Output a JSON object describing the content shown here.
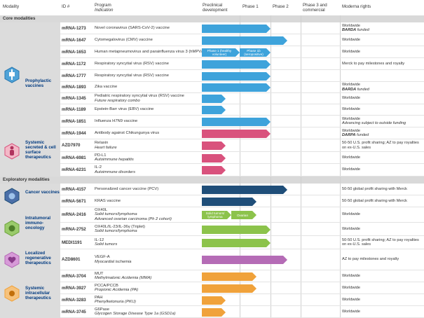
{
  "header": {
    "modality": "Modality",
    "id": "ID #",
    "program": "Program",
    "indication": "Indication",
    "preclinical": "Preclinical development",
    "phase1": "Phase 1",
    "phase2": "Phase 2",
    "phase3": "Phase 3 and commercial",
    "rights": "Moderna rights"
  },
  "sections": {
    "core": "Core modalities",
    "exploratory": "Exploratory modalities"
  },
  "groups": {
    "prophylactic": "Prophylactic vaccines",
    "systemic_secreted": "Systemic secreted & cell surface therapeutics",
    "cancer": "Cancer vaccines",
    "intratumoral": "Intratumoral immuno-oncology",
    "localized": "Localized regenerative therapeutics",
    "systemic_intracellular": "Systemic intracellular therapeutics"
  },
  "colors": {
    "blue": "#3ea3db",
    "pink": "#d9527d",
    "navy": "#1f4e79",
    "green": "#8cc34b",
    "purple": "#b56cb6",
    "orange": "#f0a23b"
  },
  "rows": [
    {
      "id": "mRNA-1273",
      "prog": "Novel coronavirus (SARS-CoV-2) vaccine",
      "ind": "",
      "rights": "Worldwide",
      "rights_em": "BARDA",
      "rights_sub": " funded"
    },
    {
      "id": "mRNA-1647",
      "prog": "Cytomegalovirus (CMV) vaccine",
      "ind": "",
      "rights": "Worldwide",
      "rights_em": "",
      "rights_sub": ""
    },
    {
      "id": "mRNA-1653",
      "prog": "Human metapneumovirus and parainfluenza virus 3 (hMPV/PIV3) vaccine",
      "ind": "",
      "rights": "Worldwide",
      "rights_em": "",
      "rights_sub": ""
    },
    {
      "id": "mRNA-1172",
      "prog": "Respiratory syncytial virus (RSV) vaccine",
      "ind": "",
      "rights": "Merck to pay milestones and royalty",
      "rights_em": "",
      "rights_sub": ""
    },
    {
      "id": "mRNA-1777",
      "prog": "Respiratory syncytial virus (RSV) vaccine",
      "ind": "",
      "rights": "",
      "rights_em": "",
      "rights_sub": ""
    },
    {
      "id": "mRNA-1893",
      "prog": "Zika vaccine",
      "ind": "",
      "rights": "Worldwide",
      "rights_em": "BARDA",
      "rights_sub": " funded"
    },
    {
      "id": "mRNA-1345",
      "prog": "Pediatric respiratory syncytial virus (RSV) vaccine",
      "ind": "Future respiratory combo",
      "rights": "Worldwide",
      "rights_em": "",
      "rights_sub": ""
    },
    {
      "id": "mRNA-1189",
      "prog": "Epstein-Barr virus (EBV) vaccine",
      "ind": "",
      "rights": "Worldwide",
      "rights_em": "",
      "rights_sub": ""
    },
    {
      "id": "mRNA-1851",
      "prog": "Influenza H7N9 vaccine",
      "ind": "",
      "rights": "Worldwide",
      "rights_em": "",
      "rights_sub": "Advancing subject to outside funding"
    },
    {
      "id": "mRNA-1944",
      "prog": "Antibody against Chikungunya virus",
      "ind": "",
      "rights": "Worldwide",
      "rights_em": "DARPA",
      "rights_sub": " funded"
    },
    {
      "id": "AZD7970",
      "prog": "Relaxin",
      "ind": "Heart failure",
      "rights": "50-50 U.S. profit sharing; AZ to pay royalties on ex-U.S. sales",
      "rights_em": "",
      "rights_sub": ""
    },
    {
      "id": "mRNA-6981",
      "prog": "PD-L1",
      "ind": "Autoimmune hepatitis",
      "rights": "Worldwide",
      "rights_em": "",
      "rights_sub": ""
    },
    {
      "id": "mRNA-6231",
      "prog": "IL-2",
      "ind": "Autoimmune disorders",
      "rights": "Worldwide",
      "rights_em": "",
      "rights_sub": ""
    },
    {
      "id": "mRNA-4157",
      "prog": "Personalized cancer vaccine (PCV)",
      "ind": "",
      "rights": "50-50 global profit sharing with Merck",
      "rights_em": "",
      "rights_sub": ""
    },
    {
      "id": "mRNA-5671",
      "prog": "KRAS vaccine",
      "ind": "",
      "rights": "50-50 global profit sharing with Merck",
      "rights_em": "",
      "rights_sub": ""
    },
    {
      "id": "mRNA-2416",
      "prog": "OX40L",
      "ind": "Solid tumors/lymphoma",
      "ind2": "Advanced ovarian carcinoma (Ph 2 cohort)",
      "rights": "Worldwide",
      "rights_em": "",
      "rights_sub": ""
    },
    {
      "id": "mRNA-2752",
      "prog": "OX40L/IL-23/IL-36γ (Triplet)",
      "ind": "Solid tumors/lymphoma",
      "rights": "Worldwide",
      "rights_em": "",
      "rights_sub": ""
    },
    {
      "id": "MEDI1191",
      "prog": "IL-12",
      "ind": "Solid tumors",
      "rights": "50-50 U.S. profit sharing; AZ to pay royalties on ex-U.S. sales",
      "rights_em": "",
      "rights_sub": ""
    },
    {
      "id": "AZD8601",
      "prog": "VEGF-A",
      "ind": "Myocardial ischemia",
      "rights": "AZ to pay milestones and royalty",
      "rights_em": "",
      "rights_sub": ""
    },
    {
      "id": "mRNA-3704",
      "prog": "MUT",
      "ind": "Methylmalonic Acidemia (MMA)",
      "rights": "Worldwide",
      "rights_em": "",
      "rights_sub": ""
    },
    {
      "id": "mRNA-3927",
      "prog": "PCCA/PCCB",
      "ind": "Propionic Acidemia (PA)",
      "rights": "Worldwide",
      "rights_em": "",
      "rights_sub": ""
    },
    {
      "id": "mRNA-3283",
      "prog": "PAH",
      "ind": "Phenylketonuria (PKU)",
      "rights": "Worldwide",
      "rights_em": "",
      "rights_sub": ""
    },
    {
      "id": "mRNA-3745",
      "prog": "G6Pase",
      "ind": "Glycogen Storage Disease Type 1a (GSD1a)",
      "rights": "Worldwide",
      "rights_em": "",
      "rights_sub": ""
    }
  ],
  "bar_labels": {
    "phase1_healthy": "Phase 1 (healthy volunteer)",
    "phase1b_sero": "Phase 1b (seropositive)",
    "solid_tumors": "Solid tumors/ lymphoma",
    "ovarian": "Ovarian"
  }
}
